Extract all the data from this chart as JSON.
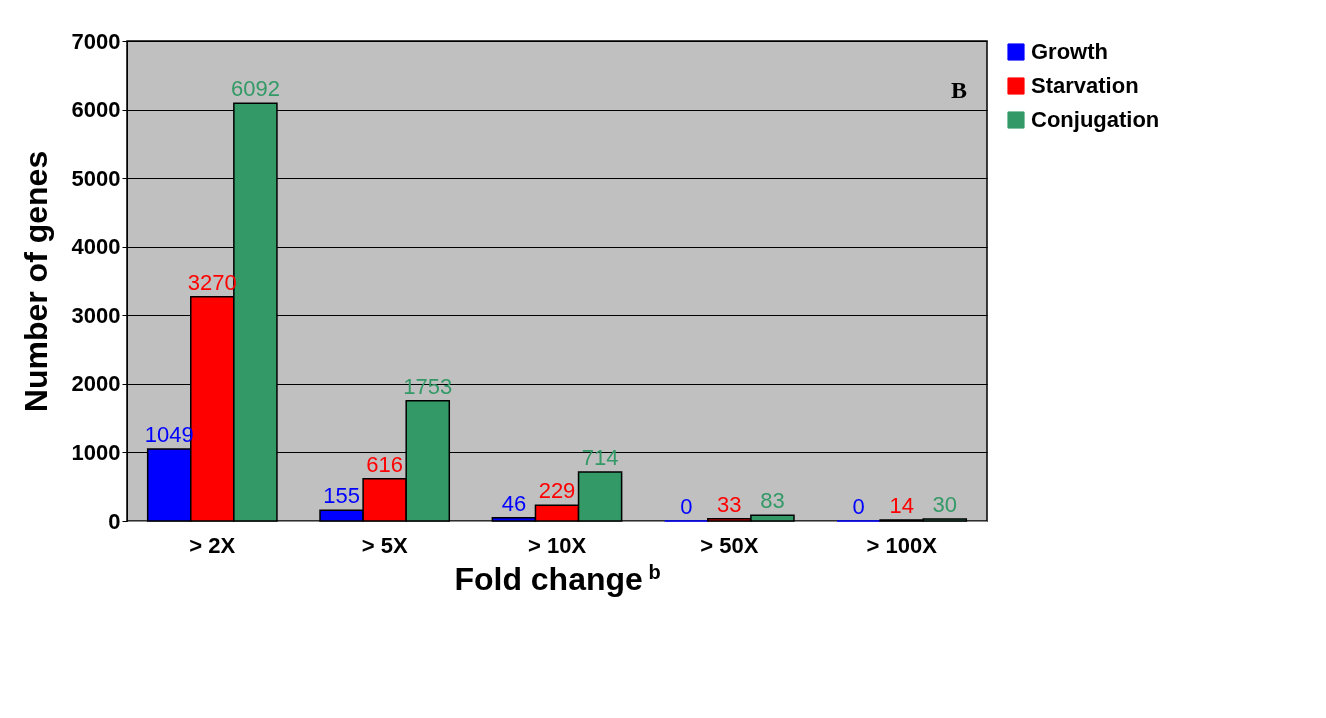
{
  "chart_data": {
    "type": "bar",
    "xlabel": "Fold change $^{b}$",
    "ylabel": "Number of genes",
    "annotations": [
      "B"
    ],
    "categories": [
      "> 2X",
      "> 5X",
      "> 10X",
      "> 50X",
      "> 100X"
    ],
    "series": [
      {
        "name": "Growth",
        "color": "#0000ff",
        "values": [
          1049,
          155,
          46,
          0,
          0
        ]
      },
      {
        "name": "Starvation",
        "color": "#ff0000",
        "values": [
          3270,
          616,
          229,
          33,
          14
        ]
      },
      {
        "name": "Conjugation",
        "color": "#339966",
        "values": [
          6092,
          1753,
          714,
          83,
          30
        ]
      }
    ],
    "ylim": [
      0,
      7000
    ],
    "yticks": [
      0,
      1000,
      2000,
      3000,
      4000,
      5000,
      6000,
      7000
    ],
    "grid": "y",
    "legend": "right",
    "data_labels": true
  }
}
